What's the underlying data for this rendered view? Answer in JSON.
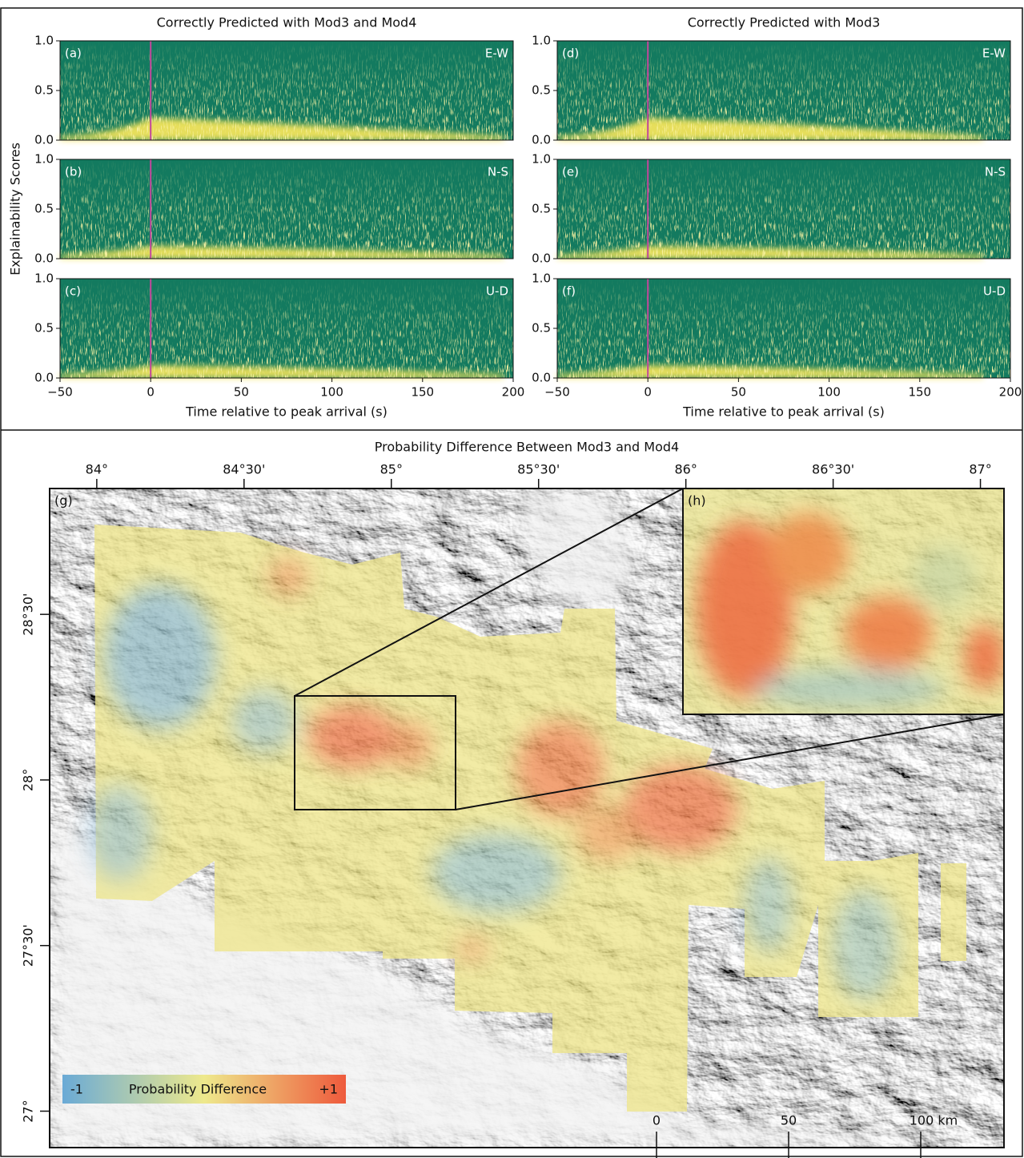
{
  "chart_data": [
    {
      "type": "heatmap",
      "title": "Correctly Predicted with Mod3 and Mod4",
      "panel": "(a)",
      "component": "E-W",
      "xlim": [
        -50,
        200
      ],
      "ylim": [
        0,
        1
      ],
      "yticks": [
        {
          "value": 0,
          "label": "0.0"
        },
        0.5,
        {
          "value": 1,
          "label": "1.0"
        }
      ],
      "vline": 0,
      "color": "#137a5f",
      "highlight_color": "#f3e45c",
      "vline_color": "#c3479c"
    },
    {
      "type": "heatmap",
      "panel": "(b)",
      "component": "N-S",
      "ylabel": "Explainability Scores",
      "xlim": [
        -50,
        200
      ],
      "ylim": [
        0,
        1
      ],
      "yticks": [
        {
          "value": 0,
          "label": "0.0"
        },
        0.5,
        {
          "value": 1,
          "label": "1.0"
        }
      ],
      "vline": 0,
      "color": "#137a5f",
      "highlight_color": "#f3e45c",
      "vline_color": "#c3479c"
    },
    {
      "type": "heatmap",
      "panel": "(c)",
      "component": "U-D",
      "xlabel": "Time relative to peak arrival (s)",
      "xlim": [
        -50,
        200
      ],
      "xticks": [
        {
          "value": -50,
          "label": "−50"
        },
        0,
        50,
        100,
        150,
        200
      ],
      "ylim": [
        0,
        1
      ],
      "yticks": [
        {
          "value": 0,
          "label": "0.0"
        },
        0.5,
        {
          "value": 1,
          "label": "1.0"
        }
      ],
      "vline": 0,
      "color": "#137a5f",
      "highlight_color": "#f3e45c",
      "vline_color": "#c3479c"
    },
    {
      "type": "heatmap",
      "title": "Correctly Predicted with Mod3",
      "panel": "(d)",
      "component": "E-W",
      "xlim": [
        -50,
        200
      ],
      "ylim": [
        0,
        1
      ],
      "yticks": [
        {
          "value": 0,
          "label": "0.0"
        },
        0.5,
        {
          "value": 1,
          "label": "1.0"
        }
      ],
      "vline": 0,
      "color": "#137a5f",
      "highlight_color": "#f3e45c",
      "vline_color": "#c3479c"
    },
    {
      "type": "heatmap",
      "panel": "(e)",
      "component": "N-S",
      "xlim": [
        -50,
        200
      ],
      "ylim": [
        0,
        1
      ],
      "yticks": [
        {
          "value": 0,
          "label": "0.0"
        },
        0.5,
        {
          "value": 1,
          "label": "1.0"
        }
      ],
      "vline": 0,
      "color": "#137a5f",
      "highlight_color": "#f3e45c",
      "vline_color": "#c3479c"
    },
    {
      "type": "heatmap",
      "panel": "(f)",
      "component": "U-D",
      "xlabel": "Time relative to peak arrival (s)",
      "xlim": [
        -50,
        200
      ],
      "xticks": [
        {
          "value": -50,
          "label": "−50"
        },
        0,
        50,
        100,
        150,
        200
      ],
      "ylim": [
        0,
        1
      ],
      "yticks": [
        {
          "value": 0,
          "label": "0.0"
        },
        0.5,
        {
          "value": 1,
          "label": "1.0"
        }
      ],
      "vline": 0,
      "color": "#137a5f",
      "highlight_color": "#f3e45c",
      "vline_color": "#c3479c"
    },
    {
      "type": "map",
      "title": "Probability Difference Between Mod3 and Mod4",
      "panel": "(g)",
      "inset_panel": "(h)",
      "xlim": [
        83.84,
        87.08
      ],
      "xticks": [
        {
          "value": 84,
          "label": "84°"
        },
        {
          "value": 84.5,
          "label": "84°30'"
        },
        {
          "value": 85,
          "label": "85°"
        },
        {
          "value": 85.5,
          "label": "85°30'"
        },
        {
          "value": 86,
          "label": "86°"
        },
        {
          "value": 86.5,
          "label": "86°30'"
        },
        {
          "value": 87,
          "label": "87°"
        }
      ],
      "ylim": [
        26.89,
        28.88
      ],
      "yticks": [
        {
          "value": 28.5,
          "label": "28°30'"
        },
        {
          "value": 28,
          "label": "28°"
        },
        {
          "value": 27.5,
          "label": "27°30'"
        },
        {
          "value": 27,
          "label": "27°"
        }
      ],
      "colorbar": {
        "label": "Probability Difference",
        "lim": [
          -1,
          1
        ],
        "ticks": [
          {
            "value": -1,
            "label": "-1"
          },
          {
            "value": 1,
            "label": "+1"
          }
        ],
        "colors": [
          "#6aaad6",
          "#eee98c",
          "#ee5a3c"
        ]
      },
      "scalebar": {
        "ticks": [
          0,
          50,
          {
            "value": 100,
            "label": "100 km"
          }
        ]
      }
    }
  ]
}
